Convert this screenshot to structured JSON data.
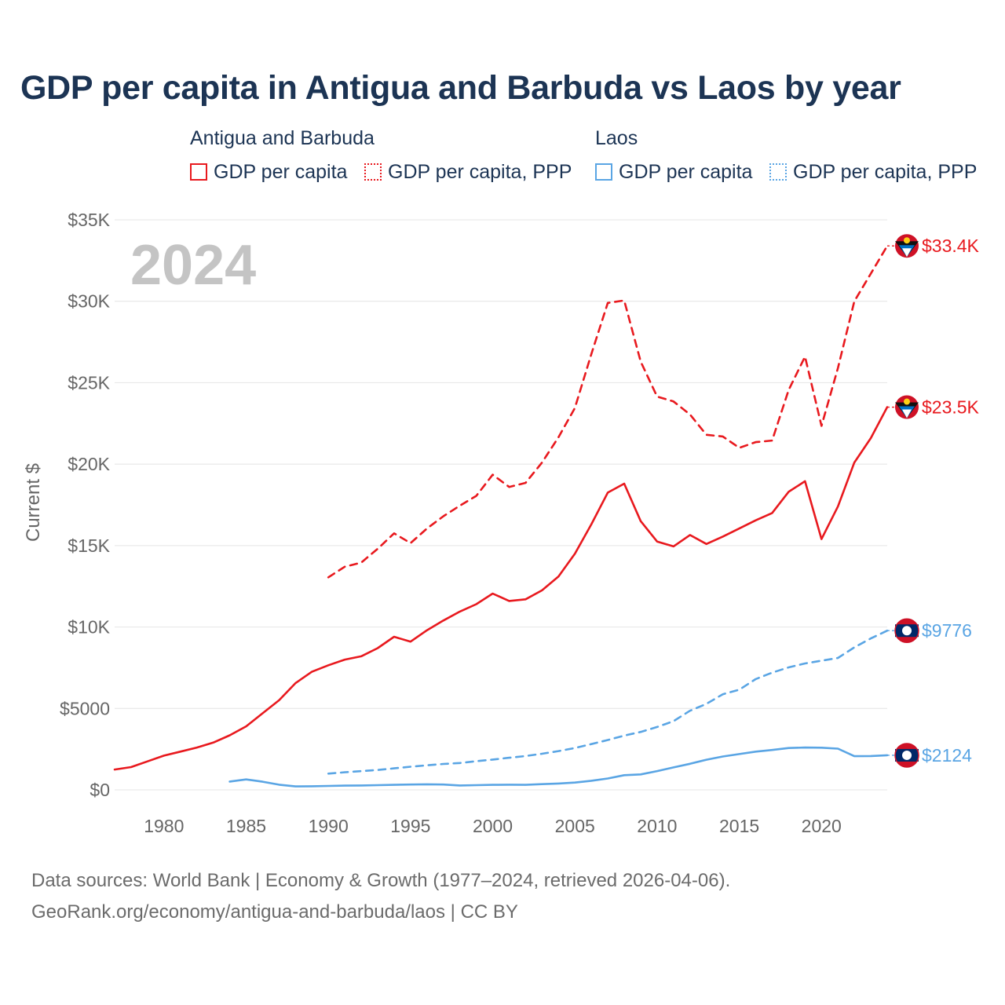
{
  "title": "GDP per capita in Antigua and Barbuda vs Laos by year",
  "legend": {
    "groups": [
      {
        "name": "Antigua and Barbuda",
        "color": "#e8191e",
        "items": [
          {
            "label": "GDP per capita",
            "style": "solid"
          },
          {
            "label": "GDP per capita, PPP",
            "style": "dashed"
          }
        ]
      },
      {
        "name": "Laos",
        "color": "#5aa5e4",
        "items": [
          {
            "label": "GDP per capita",
            "style": "solid"
          },
          {
            "label": "GDP per capita, PPP",
            "style": "dashed"
          }
        ]
      }
    ]
  },
  "chart_data": {
    "type": "line",
    "title": "GDP per capita in Antigua and Barbuda vs Laos by year",
    "year_watermark": "2024",
    "ylabel": "Current $",
    "xlabel": "",
    "xlim": [
      1977,
      2024
    ],
    "ylim": [
      0,
      35000
    ],
    "grid": true,
    "x_ticks": [
      1980,
      1985,
      1990,
      1995,
      2000,
      2005,
      2010,
      2015,
      2020
    ],
    "y_ticks": [
      {
        "value": 0,
        "label": "$0"
      },
      {
        "value": 5000,
        "label": "$5000"
      },
      {
        "value": 10000,
        "label": "$10K"
      },
      {
        "value": 15000,
        "label": "$15K"
      },
      {
        "value": 20000,
        "label": "$20K"
      },
      {
        "value": 25000,
        "label": "$25K"
      },
      {
        "value": 30000,
        "label": "$30K"
      },
      {
        "value": 35000,
        "label": "$35K"
      }
    ],
    "series": [
      {
        "name": "Antigua and Barbuda GDP per capita",
        "country": "Antigua and Barbuda",
        "color": "#e8191e",
        "style": "solid",
        "end_label": "$23.5K",
        "x": [
          1977,
          1978,
          1979,
          1980,
          1981,
          1982,
          1983,
          1984,
          1985,
          1986,
          1987,
          1988,
          1989,
          1990,
          1991,
          1992,
          1993,
          1994,
          1995,
          1996,
          1997,
          1998,
          1999,
          2000,
          2001,
          2002,
          2003,
          2004,
          2005,
          2006,
          2007,
          2008,
          2009,
          2010,
          2011,
          2012,
          2013,
          2014,
          2015,
          2016,
          2017,
          2018,
          2019,
          2020,
          2021,
          2022,
          2023,
          2024
        ],
        "y": [
          1250,
          1400,
          1750,
          2100,
          2350,
          2600,
          2900,
          3350,
          3900,
          4700,
          5500,
          6550,
          7250,
          7650,
          8000,
          8200,
          8700,
          9400,
          9100,
          9800,
          10400,
          10950,
          11400,
          12050,
          11600,
          11700,
          12250,
          13100,
          14500,
          16300,
          18250,
          18800,
          16500,
          15250,
          14950,
          15650,
          15100,
          15550,
          16050,
          16550,
          17000,
          18300,
          18950,
          15400,
          17400,
          20100,
          21600,
          23500
        ]
      },
      {
        "name": "Antigua and Barbuda GDP per capita, PPP",
        "country": "Antigua and Barbuda",
        "color": "#e8191e",
        "style": "dashed",
        "end_label": "$33.4K",
        "x": [
          1990,
          1991,
          1992,
          1993,
          1994,
          1995,
          1996,
          1997,
          1998,
          1999,
          2000,
          2001,
          2002,
          2003,
          2004,
          2005,
          2006,
          2007,
          2008,
          2009,
          2010,
          2011,
          2012,
          2013,
          2014,
          2015,
          2016,
          2017,
          2018,
          2019,
          2020,
          2021,
          2022,
          2023,
          2024
        ],
        "y": [
          13050,
          13700,
          13950,
          14800,
          15750,
          15150,
          16050,
          16800,
          17450,
          18050,
          19350,
          18600,
          18850,
          20100,
          21650,
          23450,
          26750,
          29900,
          30050,
          26300,
          24150,
          23850,
          23050,
          21800,
          21700,
          21000,
          21350,
          21450,
          24550,
          26600,
          22350,
          25900,
          30000,
          31700,
          33400
        ]
      },
      {
        "name": "Laos GDP per capita",
        "country": "Laos",
        "color": "#5aa5e4",
        "style": "solid",
        "end_label": "$2124",
        "x": [
          1984,
          1985,
          1986,
          1987,
          1988,
          1989,
          1990,
          1991,
          1992,
          1993,
          1994,
          1995,
          1996,
          1997,
          1998,
          1999,
          2000,
          2001,
          2002,
          2003,
          2004,
          2005,
          2006,
          2007,
          2008,
          2009,
          2010,
          2011,
          2012,
          2013,
          2014,
          2015,
          2016,
          2017,
          2018,
          2019,
          2020,
          2021,
          2022,
          2023,
          2024
        ],
        "y": [
          510,
          640,
          500,
          320,
          210,
          220,
          240,
          260,
          270,
          290,
          310,
          330,
          340,
          330,
          270,
          290,
          310,
          320,
          310,
          350,
          390,
          450,
          560,
          700,
          900,
          950,
          1150,
          1380,
          1600,
          1850,
          2050,
          2200,
          2350,
          2450,
          2570,
          2600,
          2590,
          2530,
          2070,
          2080,
          2124
        ]
      },
      {
        "name": "Laos GDP per capita, PPP",
        "country": "Laos",
        "color": "#5aa5e4",
        "style": "dashed",
        "end_label": "$9776",
        "x": [
          1990,
          1991,
          1992,
          1993,
          1994,
          1995,
          1996,
          1997,
          1998,
          1999,
          2000,
          2001,
          2002,
          2003,
          2004,
          2005,
          2006,
          2007,
          2008,
          2009,
          2010,
          2011,
          2012,
          2013,
          2014,
          2015,
          2016,
          2017,
          2018,
          2019,
          2020,
          2021,
          2022,
          2023,
          2024
        ],
        "y": [
          1000,
          1080,
          1150,
          1220,
          1320,
          1420,
          1510,
          1590,
          1650,
          1760,
          1860,
          1970,
          2080,
          2220,
          2380,
          2570,
          2810,
          3060,
          3330,
          3560,
          3860,
          4220,
          4860,
          5280,
          5870,
          6150,
          6800,
          7200,
          7520,
          7760,
          7930,
          8100,
          8750,
          9300,
          9776
        ]
      }
    ]
  },
  "footer": {
    "line1": "Data sources: World Bank | Economy & Growth (1977–2024, retrieved 2026-04-06).",
    "line2": "GeoRank.org/economy/antigua-and-barbuda/laos | CC BY"
  }
}
